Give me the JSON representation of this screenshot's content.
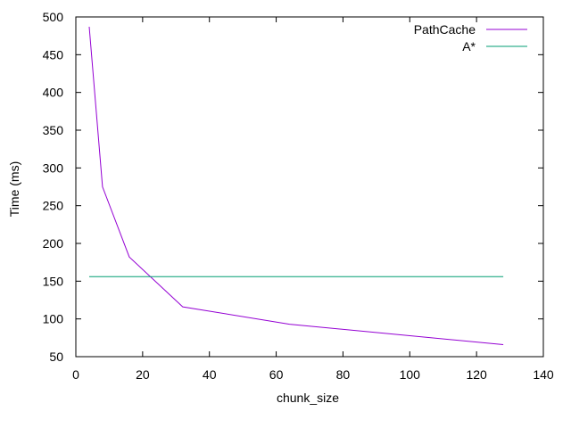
{
  "chart_data": {
    "type": "line",
    "title": "",
    "xlabel": "chunk_size",
    "ylabel": "Time (ms)",
    "xlim": [
      0,
      140
    ],
    "ylim": [
      50,
      500
    ],
    "xticks": [
      0,
      20,
      40,
      60,
      80,
      100,
      120,
      140
    ],
    "yticks": [
      50,
      100,
      150,
      200,
      250,
      300,
      350,
      400,
      450,
      500
    ],
    "grid": false,
    "legend_position": "top-right",
    "series": [
      {
        "name": "PathCache",
        "color": "#9400d3",
        "x": [
          4,
          8,
          16,
          32,
          64,
          128
        ],
        "y": [
          487,
          275,
          182,
          116,
          93,
          66
        ]
      },
      {
        "name": "A*",
        "color": "#009e73",
        "x": [
          4,
          8,
          16,
          32,
          64,
          128
        ],
        "y": [
          156,
          156,
          156,
          156,
          156,
          156
        ]
      }
    ]
  }
}
